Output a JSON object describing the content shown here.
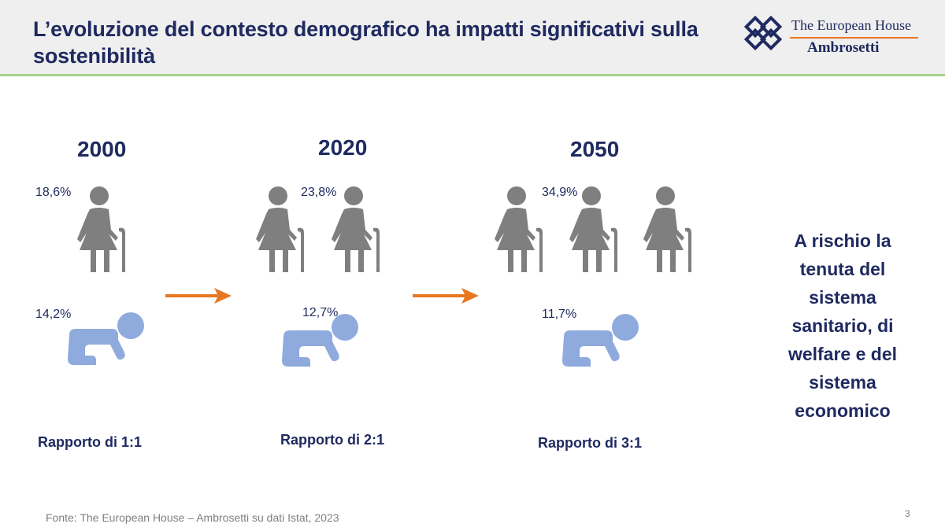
{
  "header": {
    "title": "L’evoluzione del contesto demografico ha impatti significativi sulla sostenibilità",
    "logo_top": "The European House",
    "logo_bottom": "Ambrosetti"
  },
  "columns": [
    {
      "year": "2000",
      "elderly_pct": "18,6%",
      "child_pct": "14,2%",
      "ratio": "Rapporto di 1:1",
      "elderly_count": 1,
      "child_count": 1
    },
    {
      "year": "2020",
      "elderly_pct": "23,8%",
      "child_pct": "12,7%",
      "ratio": "Rapporto di 2:1",
      "elderly_count": 2,
      "child_count": 1
    },
    {
      "year": "2050",
      "elderly_pct": "34,9%",
      "child_pct": "11,7%",
      "ratio": "Rapporto di 3:1",
      "elderly_count": 3,
      "child_count": 1
    }
  ],
  "icons": {
    "elderly": "elderly-person-icon",
    "child": "crawling-baby-icon",
    "transition": "right-arrow-icon"
  },
  "risk_lines": [
    "A rischio la",
    "tenuta del",
    "sistema",
    "sanitario, di",
    "welfare e del",
    "sistema",
    "economico"
  ],
  "footer": {
    "source": "Fonte: The European House – Ambrosetti su dati Istat, 2023",
    "page": "3"
  },
  "colors": {
    "title": "#1f2a60",
    "elderly": "#7f7f7f",
    "child": "#8faadc",
    "arrow": "#e87722",
    "header_bg": "#efefef",
    "header_rule": "#a9d18e"
  }
}
